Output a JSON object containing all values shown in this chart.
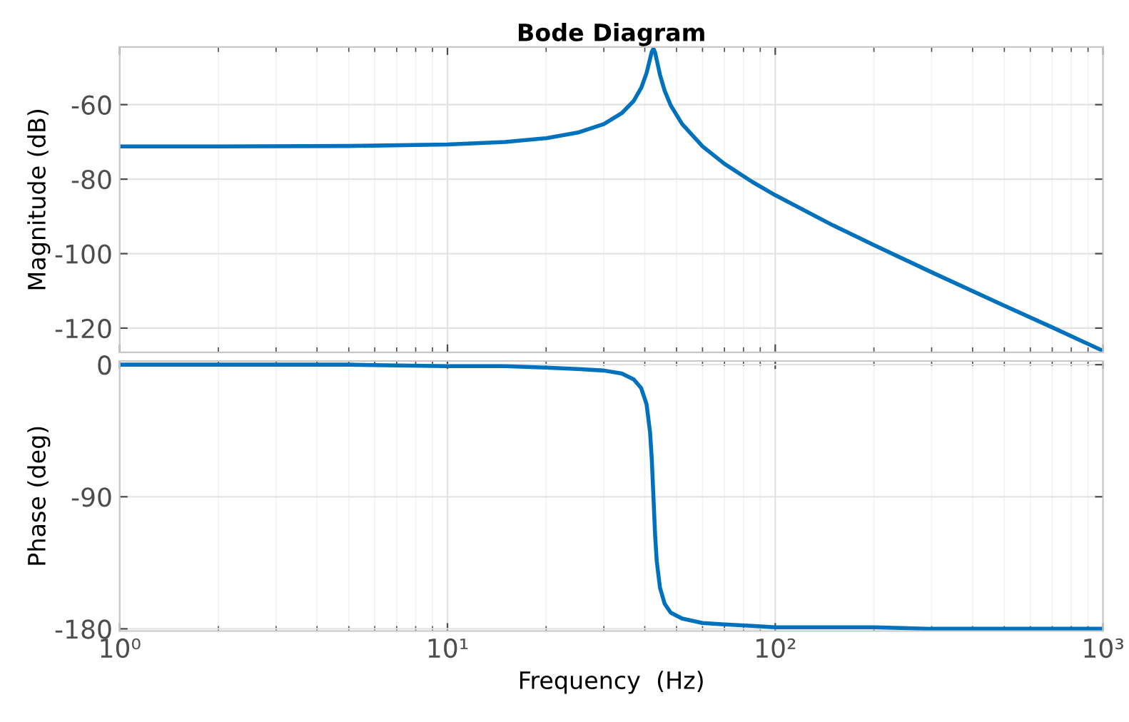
{
  "chart_data": [
    {
      "type": "line",
      "title": "Bode Diagram",
      "ylabel": "Magnitude (dB)",
      "log": "x",
      "grid": true,
      "tick_labels": "y",
      "marker": "none",
      "line_style": "solid",
      "x": [
        1,
        2,
        5,
        10,
        15,
        20,
        25,
        30,
        34,
        37,
        39,
        40.5,
        41.5,
        42,
        42.5,
        43,
        43.5,
        44.5,
        46,
        48,
        52,
        60,
        70,
        85,
        100,
        150,
        200,
        300,
        500,
        700,
        1000
      ],
      "series": [
        {
          "color": "#0072bd",
          "values": [
            -71.2,
            -71.2,
            -71.1,
            -70.7,
            -70.0,
            -69.0,
            -67.5,
            -65.2,
            -62.3,
            -59.0,
            -55.5,
            -51.5,
            -47.7,
            -45.8,
            -45.0,
            -46.0,
            -48.0,
            -52.0,
            -56.3,
            -60.2,
            -65.2,
            -71.2,
            -75.9,
            -80.7,
            -84.3,
            -92.4,
            -97.7,
            -105.0,
            -114.0,
            -119.8,
            -126.1
          ]
        }
      ],
      "xlim": [
        1,
        1000
      ],
      "xticks": [
        {
          "value": 1,
          "label": null
        },
        {
          "value": 10,
          "label": null
        },
        {
          "value": 100,
          "label": null
        },
        {
          "value": 1000,
          "label": null
        }
      ],
      "ylim": [
        -126.5,
        -44.5
      ],
      "yticks": [
        -60,
        -80,
        -100,
        -120
      ]
    },
    {
      "type": "line",
      "xlabel": "Frequency  (Hz)",
      "ylabel": "Phase (deg)",
      "log": "x",
      "grid": true,
      "marker": "none",
      "line_style": "solid",
      "x": [
        1,
        2,
        5,
        10,
        15,
        20,
        25,
        30,
        34,
        37,
        39,
        40.5,
        41.5,
        42,
        42.5,
        43,
        43.5,
        44.5,
        46,
        48,
        52,
        60,
        70,
        85,
        100,
        150,
        200,
        300,
        500,
        700,
        1000
      ],
      "series": [
        {
          "color": "#0072bd",
          "values": [
            0,
            0,
            0,
            -1,
            -1,
            -2,
            -3,
            -4,
            -6,
            -10,
            -16,
            -27,
            -46,
            -64,
            -90,
            -116,
            -134,
            -152,
            -163,
            -169,
            -173,
            -176,
            -177,
            -178,
            -179,
            -179,
            -179,
            -180,
            -180,
            -180,
            -180
          ]
        }
      ],
      "xlim": [
        1,
        1000
      ],
      "xticks": [
        {
          "value": 1,
          "label": "10⁰"
        },
        {
          "value": 10,
          "label": "10¹"
        },
        {
          "value": 100,
          "label": "10²"
        },
        {
          "value": 1000,
          "label": "10³"
        }
      ],
      "ylim": [
        -181.5,
        2.5
      ],
      "yticks": [
        0,
        -90,
        -180
      ]
    }
  ]
}
